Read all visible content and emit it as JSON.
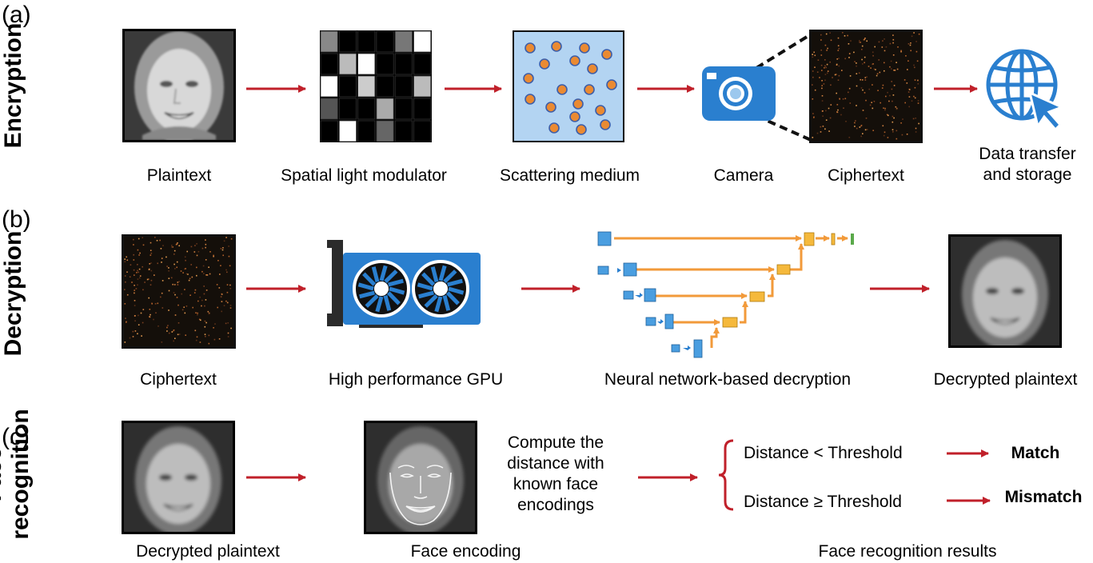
{
  "panels": {
    "a": {
      "letter": "(a)",
      "title": "Encryption"
    },
    "b": {
      "letter": "(b)",
      "title": "Decryption"
    },
    "c": {
      "letter": "(c)",
      "title_line1": "Face",
      "title_line2": "recognition"
    }
  },
  "encryption": {
    "plaintext": "Plaintext",
    "slm": "Spatial light modulator",
    "scattering": "Scattering medium",
    "camera": "Camera",
    "ciphertext": "Ciphertext",
    "transfer_line1": "Data transfer",
    "transfer_line2": "and storage"
  },
  "decryption": {
    "ciphertext": "Ciphertext",
    "gpu": "High performance GPU",
    "network": "Neural network-based decryption",
    "decrypted": "Decrypted plaintext"
  },
  "recognition": {
    "decrypted": "Decrypted plaintext",
    "encoding": "Face encoding",
    "compute_lines": [
      "Compute the",
      "distance with",
      "known face",
      "encodings"
    ],
    "rule_match": "Distance < Threshold",
    "rule_mismatch": "Distance ≥ Threshold",
    "result_match": "Match",
    "result_mismatch": "Mismatch",
    "results_label": "Face recognition results"
  },
  "colors": {
    "arrow": "#c0202a",
    "icon_blue": "#2a7fcf",
    "scatter_bg": "#b3d4f2",
    "particle": "#ea8a32",
    "unet_blue": "#4a9ee0",
    "unet_orange": "#f29a3a",
    "unet_green": "#5aa94a"
  },
  "icons": [
    "camera-icon",
    "globe-icon",
    "cursor-icon",
    "gpu-icon",
    "neural-network-icon"
  ]
}
